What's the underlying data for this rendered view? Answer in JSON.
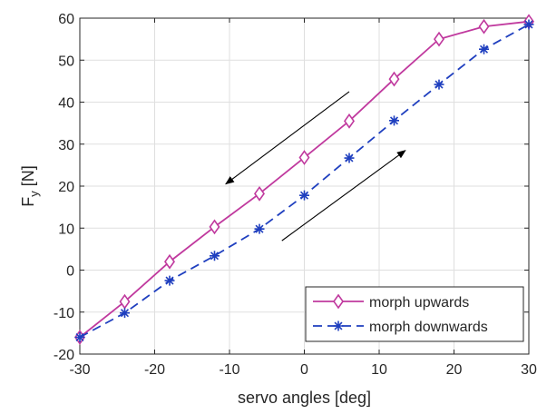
{
  "chart_data": {
    "type": "line",
    "title": "",
    "xlabel": "servo angles [deg]",
    "ylabel_main": "F",
    "ylabel_sub": "y",
    "ylabel_unit": " [N]",
    "xlim": [
      -30,
      30
    ],
    "ylim": [
      -20,
      60
    ],
    "xticks": [
      "-30",
      "-20",
      "-10",
      "0",
      "10",
      "20",
      "30"
    ],
    "yticks": [
      "-20",
      "-10",
      "0",
      "10",
      "20",
      "30",
      "40",
      "50",
      "60"
    ],
    "grid": true,
    "legend_position": "bottom-right",
    "series": [
      {
        "name": "morph upwards",
        "color": "#c0399e",
        "line_style": "solid",
        "marker": "diamond-icon",
        "x": [
          -30,
          -24,
          -18,
          -12,
          -6,
          0,
          6,
          12,
          18,
          24,
          30
        ],
        "y": [
          -16,
          -7.5,
          2,
          10.3,
          18.2,
          26.8,
          35.5,
          45.5,
          55,
          58,
          59.2
        ]
      },
      {
        "name": "morph downwards",
        "color": "#1f3fbf",
        "line_style": "dashed",
        "marker": "asterisk-icon",
        "x": [
          -30,
          -24,
          -18,
          -12,
          -6,
          0,
          6,
          12,
          18,
          24,
          30
        ],
        "y": [
          -16,
          -10.2,
          -2.5,
          3.4,
          9.8,
          17.8,
          26.7,
          35.6,
          44.2,
          52.6,
          58.5
        ]
      }
    ],
    "annotations": [
      {
        "type": "arrow",
        "name": "arrow-down-left",
        "from": [
          6,
          42.5
        ],
        "to": [
          -10.5,
          20.5
        ]
      },
      {
        "type": "arrow",
        "name": "arrow-up-right",
        "from": [
          -3,
          7
        ],
        "to": [
          13.5,
          28.5
        ]
      }
    ]
  }
}
